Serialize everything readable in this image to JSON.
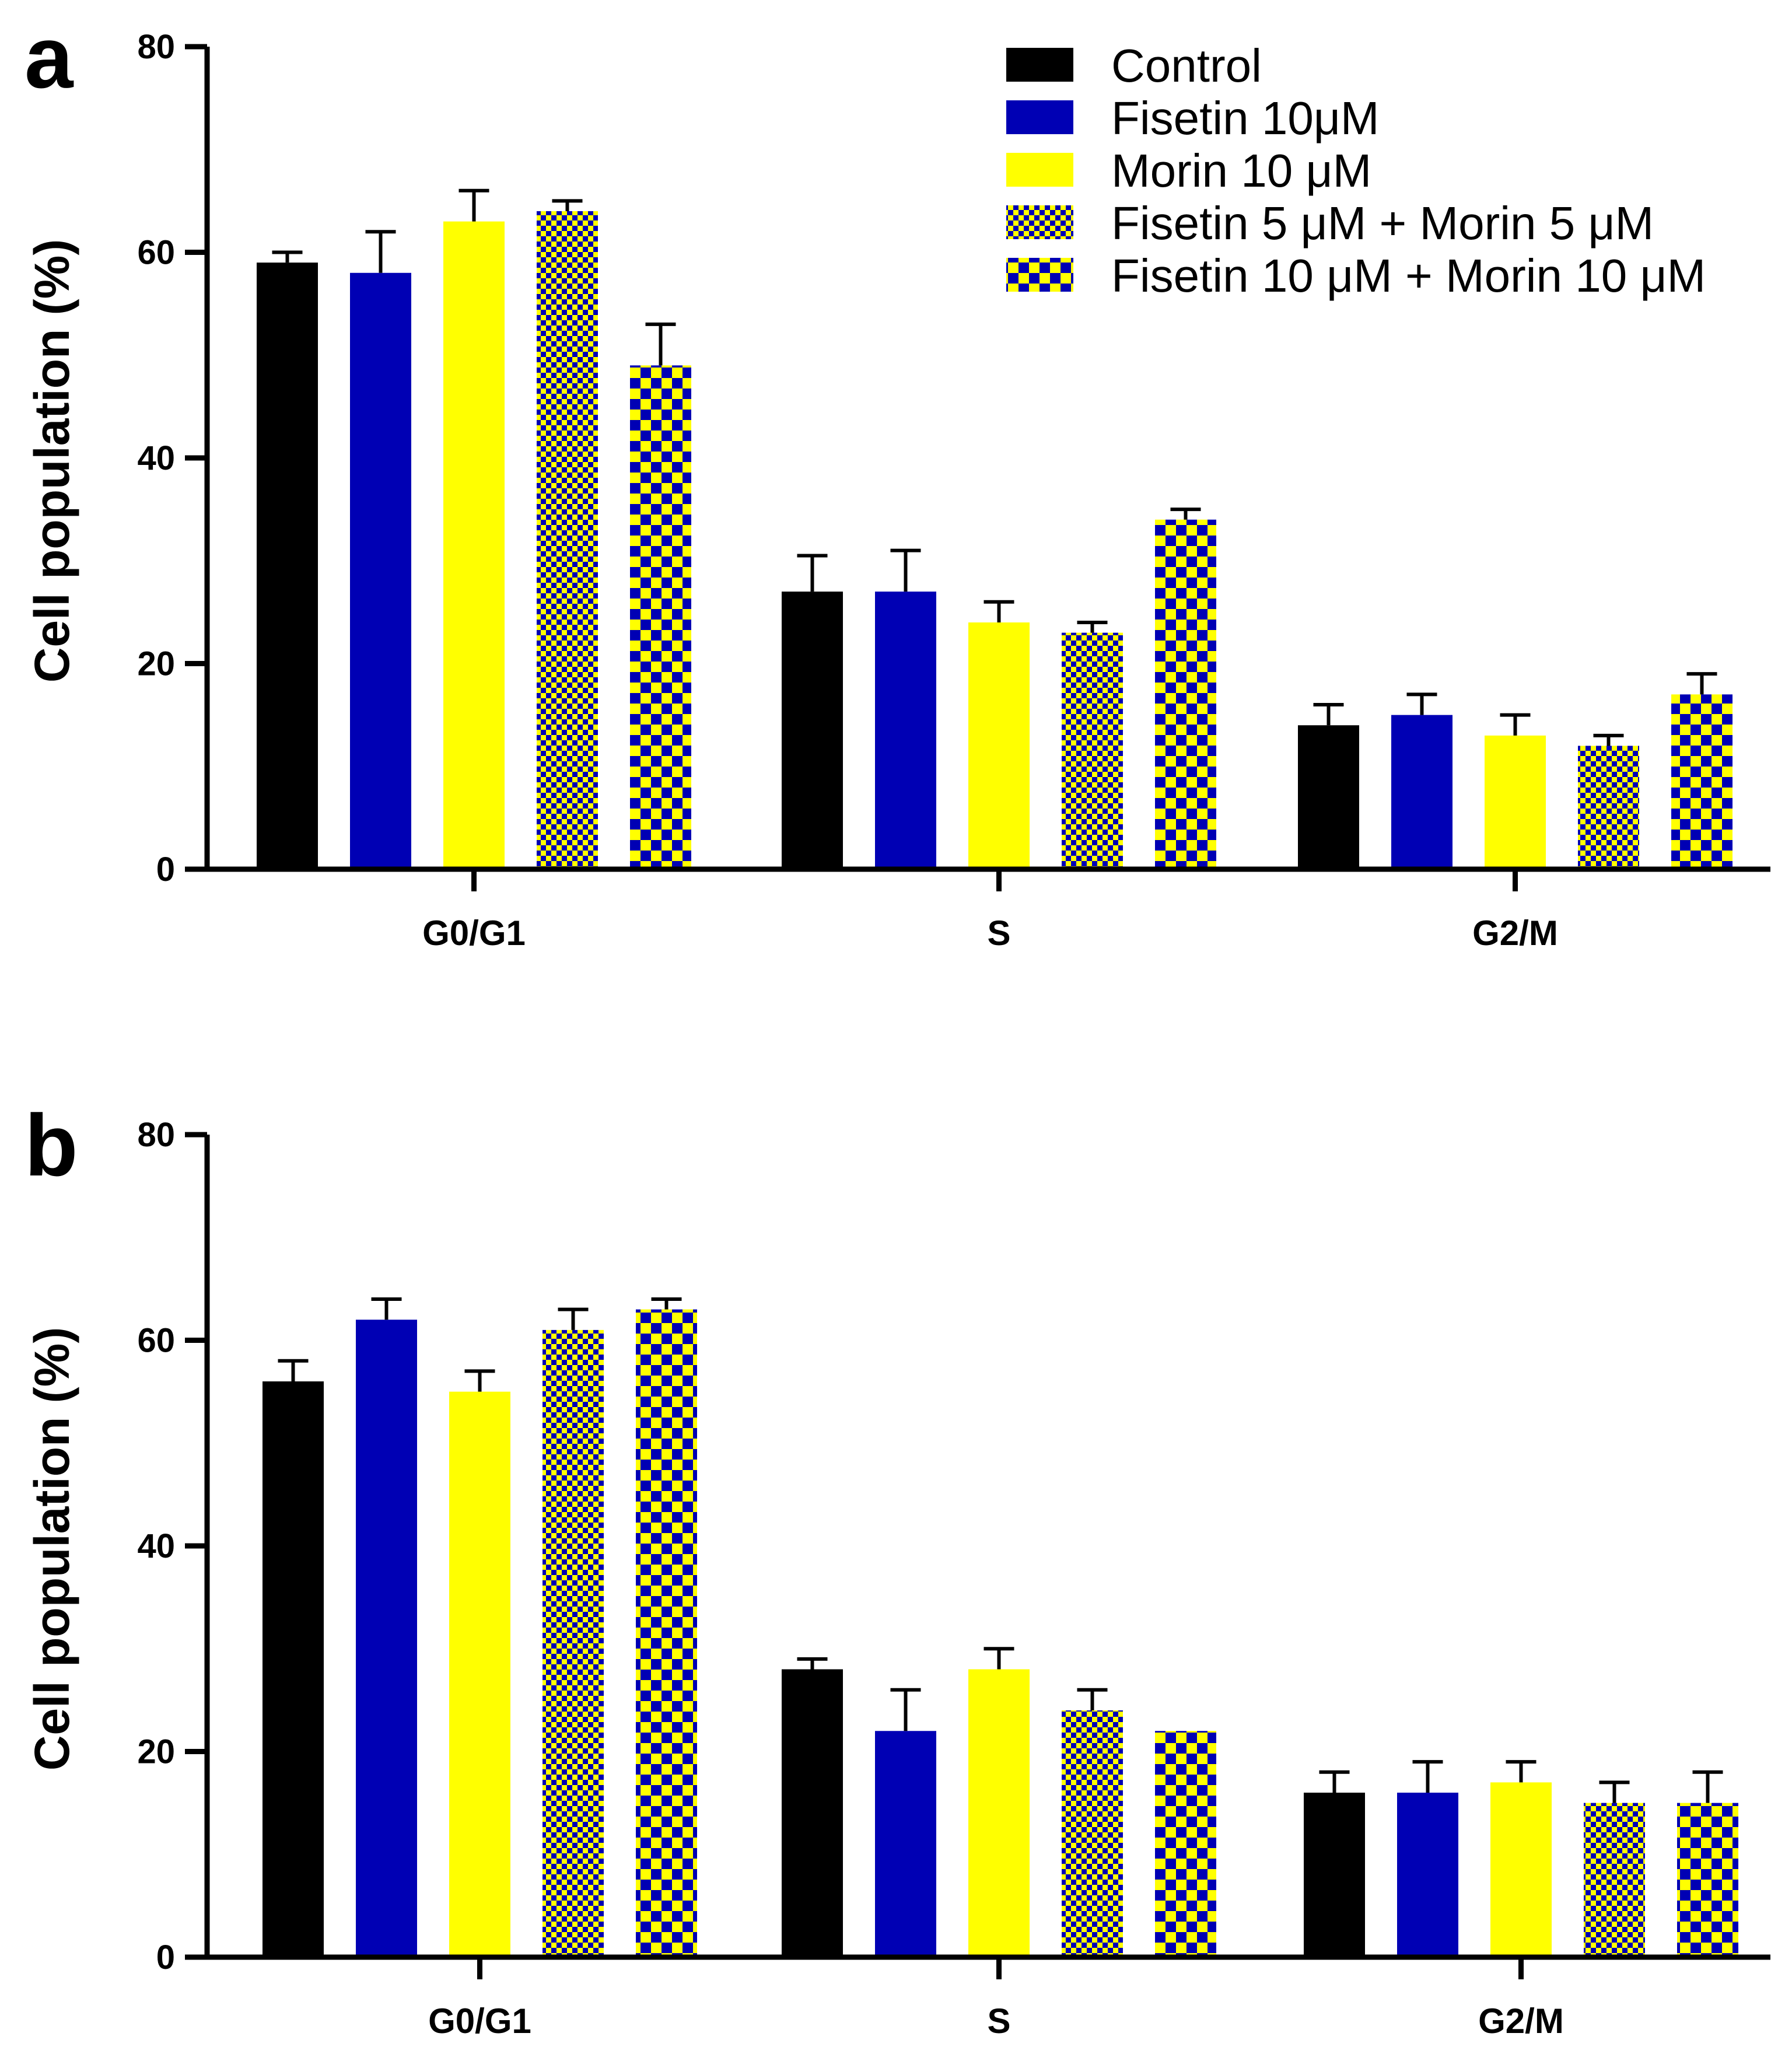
{
  "colors": {
    "black": "#000000",
    "blue": "#0000b4",
    "yellow": "#ffff00"
  },
  "legend": {
    "items": [
      {
        "label": "Control",
        "fill": "solid-black"
      },
      {
        "label": "Fisetin 10μM",
        "fill": "solid-blue"
      },
      {
        "label": "Morin 10 μM",
        "fill": "solid-yellow"
      },
      {
        "label": "Fisetin 5 μM + Morin 5 μM",
        "fill": "check-fine"
      },
      {
        "label": "Fisetin 10 μM + Morin 10 μM",
        "fill": "check-coarse"
      }
    ]
  },
  "chart_data": [
    {
      "panel": "a",
      "type": "bar",
      "ylabel": "Cell population (%)",
      "ylim": [
        0,
        80
      ],
      "yticks": [
        "0",
        "20",
        "40",
        "60",
        "80"
      ],
      "categories": [
        "G0/G1",
        "S",
        "G2/M"
      ],
      "series": [
        {
          "name": "Control",
          "values": [
            59,
            27,
            14
          ],
          "errors": [
            1,
            3.5,
            2
          ]
        },
        {
          "name": "Fisetin 10μM",
          "values": [
            58,
            27,
            15
          ],
          "errors": [
            4,
            4,
            2
          ]
        },
        {
          "name": "Morin 10 μM",
          "values": [
            63,
            24,
            13
          ],
          "errors": [
            3,
            2,
            2
          ]
        },
        {
          "name": "Fisetin 5 μM + Morin 5 μM",
          "values": [
            64,
            23,
            12
          ],
          "errors": [
            1,
            1,
            1
          ]
        },
        {
          "name": "Fisetin 10 μM + Morin 10 μM",
          "values": [
            49,
            34,
            17
          ],
          "errors": [
            4,
            1,
            2
          ]
        }
      ]
    },
    {
      "panel": "b",
      "type": "bar",
      "ylabel": "Cell population (%)",
      "ylim": [
        0,
        80
      ],
      "yticks": [
        "0",
        "20",
        "40",
        "60",
        "80"
      ],
      "categories": [
        "G0/G1",
        "S",
        "G2/M"
      ],
      "series": [
        {
          "name": "Control",
          "values": [
            56,
            28,
            16
          ],
          "errors": [
            2,
            1,
            2
          ]
        },
        {
          "name": "Fisetin 10μM",
          "values": [
            62,
            22,
            16
          ],
          "errors": [
            2,
            4,
            3
          ]
        },
        {
          "name": "Morin 10 μM",
          "values": [
            55,
            28,
            17
          ],
          "errors": [
            2,
            2,
            2
          ]
        },
        {
          "name": "Fisetin 5 μM + Morin 5 μM",
          "values": [
            61,
            24,
            15
          ],
          "errors": [
            2,
            2,
            2
          ]
        },
        {
          "name": "Fisetin 10 μM + Morin 10 μM",
          "values": [
            63,
            22,
            15
          ],
          "errors": [
            1,
            0,
            3
          ]
        }
      ]
    }
  ]
}
